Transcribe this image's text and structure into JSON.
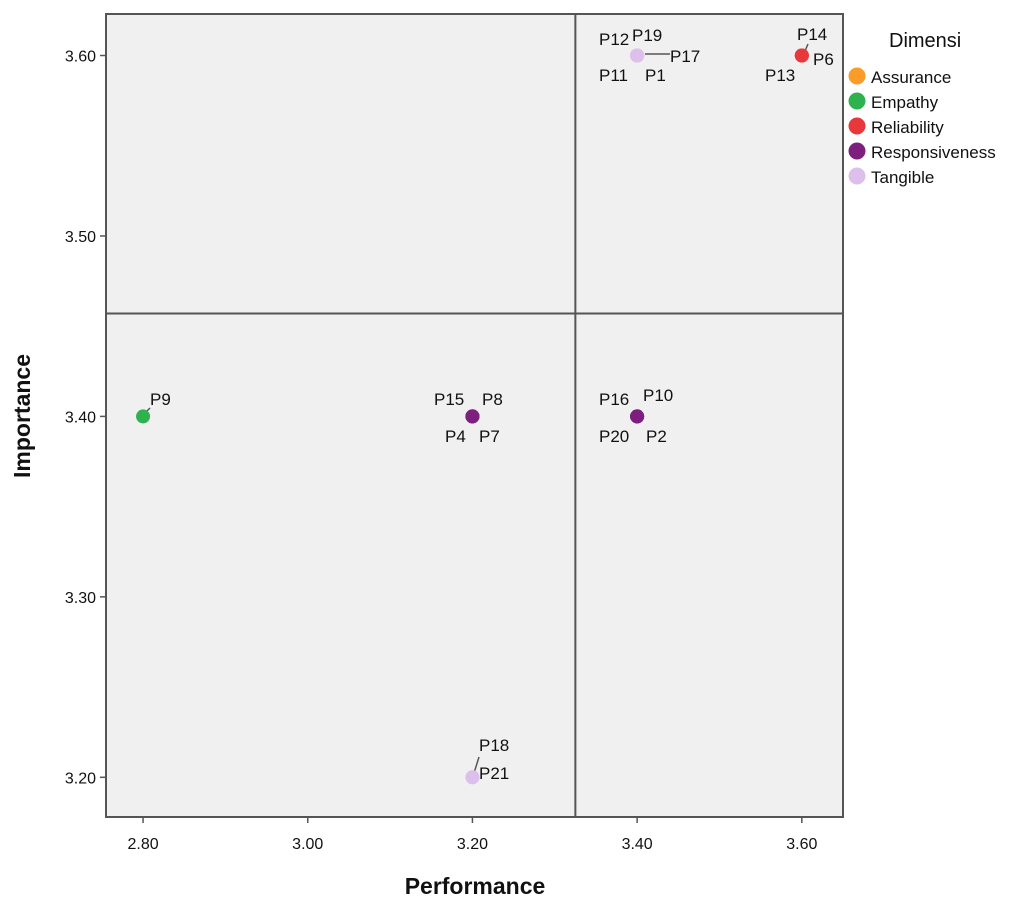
{
  "colors": {
    "plot_background": "#f0f0f0",
    "frame": "#555555",
    "Assurance": "#f99c2a",
    "Empathy": "#2db24d",
    "Reliability": "#e8383b",
    "Responsiveness": "#7c1f7e",
    "Tangible": "#dcbfea"
  },
  "chart_data": {
    "type": "scatter",
    "xlabel": "Performance",
    "ylabel": "Importance",
    "xlim": [
      2.755,
      3.65
    ],
    "ylim": [
      3.178,
      3.623
    ],
    "x_ticks": [
      "2.80",
      "3.00",
      "3.20",
      "3.40",
      "3.60"
    ],
    "y_ticks": [
      "3.20",
      "3.30",
      "3.40",
      "3.50",
      "3.60"
    ],
    "reference_lines": {
      "x": 3.325,
      "y": 3.457
    },
    "grid": false,
    "legend": {
      "title": "Dimensi",
      "position": "right",
      "entries": [
        "Assurance",
        "Empathy",
        "Reliability",
        "Responsiveness",
        "Tangible"
      ]
    },
    "points": [
      {
        "label": "P9",
        "x": 2.8,
        "y": 3.4,
        "dimension": "Empathy"
      },
      {
        "label": "P15",
        "x": 3.2,
        "y": 3.4,
        "dimension": "Responsiveness"
      },
      {
        "label": "P8",
        "x": 3.2,
        "y": 3.4,
        "dimension": "Responsiveness"
      },
      {
        "label": "P4",
        "x": 3.2,
        "y": 3.4,
        "dimension": "Responsiveness"
      },
      {
        "label": "P7",
        "x": 3.2,
        "y": 3.4,
        "dimension": "Responsiveness"
      },
      {
        "label": "P16",
        "x": 3.4,
        "y": 3.4,
        "dimension": "Responsiveness"
      },
      {
        "label": "P10",
        "x": 3.4,
        "y": 3.4,
        "dimension": "Responsiveness"
      },
      {
        "label": "P20",
        "x": 3.4,
        "y": 3.4,
        "dimension": "Responsiveness"
      },
      {
        "label": "P2",
        "x": 3.4,
        "y": 3.4,
        "dimension": "Responsiveness"
      },
      {
        "label": "P18",
        "x": 3.2,
        "y": 3.2,
        "dimension": "Tangible"
      },
      {
        "label": "P21",
        "x": 3.2,
        "y": 3.2,
        "dimension": "Tangible"
      },
      {
        "label": "P12",
        "x": 3.4,
        "y": 3.6,
        "dimension": "Tangible"
      },
      {
        "label": "P19",
        "x": 3.4,
        "y": 3.6,
        "dimension": "Tangible"
      },
      {
        "label": "P17",
        "x": 3.4,
        "y": 3.6,
        "dimension": "Tangible"
      },
      {
        "label": "P11",
        "x": 3.4,
        "y": 3.6,
        "dimension": "Tangible"
      },
      {
        "label": "P1",
        "x": 3.4,
        "y": 3.6,
        "dimension": "Tangible"
      },
      {
        "label": "P14",
        "x": 3.6,
        "y": 3.6,
        "dimension": "Reliability"
      },
      {
        "label": "P6",
        "x": 3.6,
        "y": 3.6,
        "dimension": "Reliability"
      },
      {
        "label": "P13",
        "x": 3.6,
        "y": 3.6,
        "dimension": "Reliability"
      }
    ]
  }
}
